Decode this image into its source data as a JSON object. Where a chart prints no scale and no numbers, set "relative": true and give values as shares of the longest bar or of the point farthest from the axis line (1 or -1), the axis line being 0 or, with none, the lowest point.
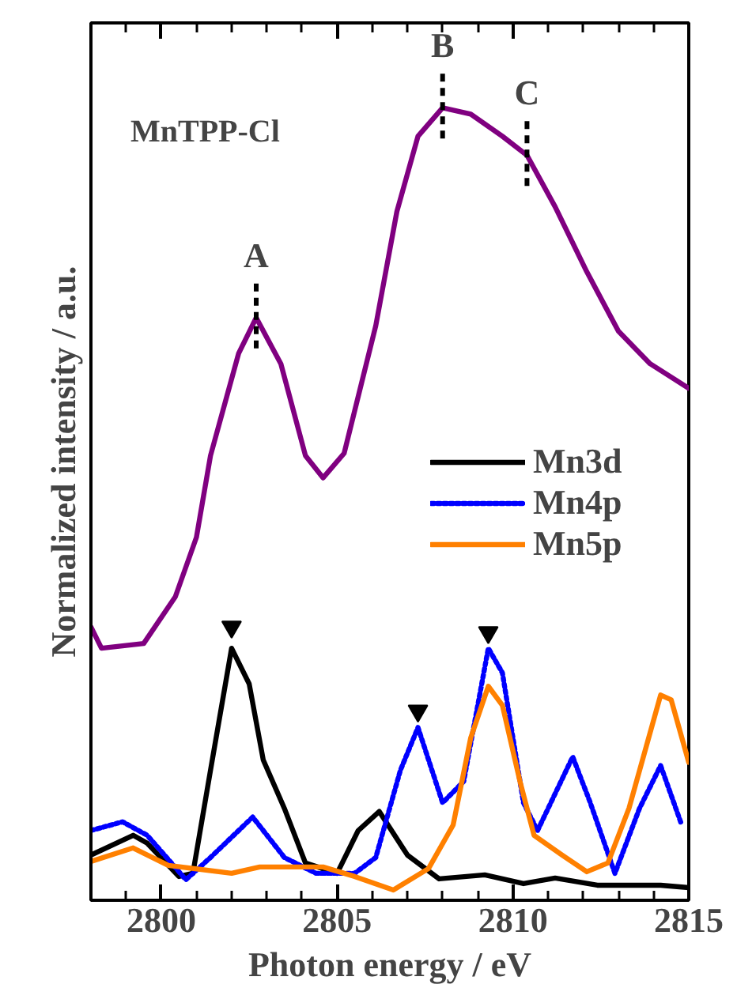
{
  "chart_data": {
    "type": "line",
    "relative": true,
    "xlabel": "Photon energy / eV",
    "ylabel": "Normalized intensity / a.u.",
    "xlim": [
      2798,
      2815
    ],
    "xticks": [
      2800,
      2805,
      2810,
      2815
    ],
    "grid": false,
    "legend": "right",
    "marker": "none",
    "annotations": [
      "MnTPP-Cl",
      {
        "text": "A",
        "x": 2802.7,
        "y": 0.735
      },
      {
        "text": "B",
        "x": 2808.0,
        "y": 1.0
      },
      {
        "text": "C",
        "x": 2810.4,
        "y": 0.94
      }
    ],
    "series": [
      {
        "color": "#800080",
        "line_style": "solid",
        "x": [
          2798.0,
          2798.3,
          2798.9,
          2799.5,
          2800.4,
          2801.0,
          2801.4,
          2802.2,
          2802.7,
          2803.4,
          2804.1,
          2804.6,
          2805.2,
          2806.1,
          2806.7,
          2807.3,
          2808.0,
          2808.8,
          2809.7,
          2810.4,
          2811.2,
          2812.1,
          2813.0,
          2813.9,
          2815.0
        ],
        "values": [
          0.345,
          0.318,
          0.321,
          0.324,
          0.383,
          0.458,
          0.561,
          0.69,
          0.735,
          0.677,
          0.561,
          0.533,
          0.564,
          0.725,
          0.869,
          0.964,
          1.0,
          0.992,
          0.964,
          0.94,
          0.875,
          0.793,
          0.718,
          0.677,
          0.646
        ]
      },
      {
        "name": "Mn3d",
        "color": "#000000",
        "line_style": "solid",
        "x": [
          2798.0,
          2799.2,
          2799.6,
          2800.5,
          2800.9,
          2801.4,
          2802.0,
          2802.5,
          2802.9,
          2803.5,
          2804.1,
          2805.0,
          2805.6,
          2806.2,
          2807.0,
          2807.9,
          2809.2,
          2810.3,
          2811.2,
          2812.4,
          2814.2,
          2815.0
        ],
        "values": [
          0.057,
          0.082,
          0.072,
          0.03,
          0.034,
          0.164,
          0.318,
          0.273,
          0.177,
          0.116,
          0.047,
          0.034,
          0.088,
          0.112,
          0.057,
          0.027,
          0.032,
          0.021,
          0.028,
          0.019,
          0.019,
          0.016
        ]
      },
      {
        "name": "Mn4p",
        "color": "#0000ff",
        "line_style": "dashed",
        "x": [
          2798.0,
          2798.9,
          2799.6,
          2800.7,
          2801.4,
          2802.6,
          2803.5,
          2804.4,
          2805.5,
          2806.1,
          2806.8,
          2807.3,
          2808.0,
          2808.6,
          2809.3,
          2809.7,
          2810.3,
          2810.7,
          2811.7,
          2812.2,
          2812.9,
          2813.6,
          2814.2,
          2814.8
        ],
        "values": [
          0.088,
          0.099,
          0.082,
          0.026,
          0.054,
          0.105,
          0.054,
          0.034,
          0.034,
          0.054,
          0.164,
          0.218,
          0.123,
          0.15,
          0.318,
          0.287,
          0.123,
          0.088,
          0.181,
          0.123,
          0.034,
          0.116,
          0.17,
          0.095
        ]
      },
      {
        "name": "Mn5p",
        "color": "#ff8000",
        "line_style": "solid",
        "x": [
          2798.0,
          2799.2,
          2800.2,
          2802.0,
          2802.8,
          2804.6,
          2805.5,
          2806.6,
          2807.6,
          2808.3,
          2808.8,
          2809.3,
          2809.7,
          2810.2,
          2810.6,
          2811.4,
          2812.1,
          2812.7,
          2813.3,
          2814.2,
          2814.5,
          2815.0
        ],
        "values": [
          0.049,
          0.066,
          0.044,
          0.034,
          0.042,
          0.042,
          0.03,
          0.013,
          0.04,
          0.095,
          0.205,
          0.27,
          0.246,
          0.15,
          0.082,
          0.057,
          0.036,
          0.047,
          0.116,
          0.259,
          0.253,
          0.174
        ]
      },
      {
        "type": "scatter",
        "marker": "triangle",
        "color": "#000000",
        "x": [
          2802.0,
          2807.3,
          2809.3
        ],
        "values": [
          0.345,
          0.239,
          0.338
        ]
      }
    ]
  }
}
